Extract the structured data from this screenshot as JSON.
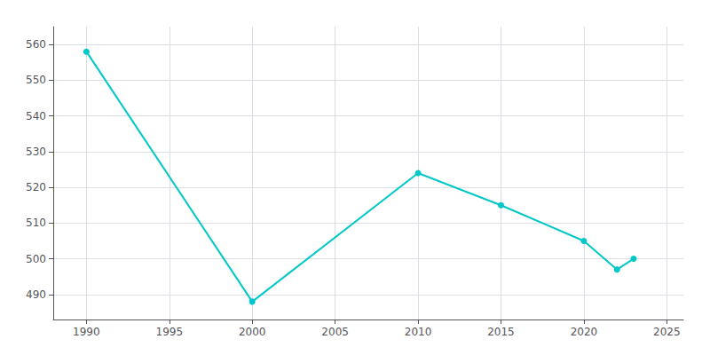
{
  "chart_data": {
    "type": "line",
    "x": [
      1990,
      2000,
      2010,
      2015,
      2020,
      2022,
      2023
    ],
    "values": [
      558,
      488,
      524,
      515,
      505,
      497,
      500
    ],
    "color": "#00C8C8",
    "marker": "circle",
    "xlim": [
      1988,
      2026
    ],
    "ylim": [
      483,
      565
    ],
    "xticks": [
      1990,
      1995,
      2000,
      2005,
      2010,
      2015,
      2020,
      2025
    ],
    "yticks": [
      490,
      500,
      510,
      520,
      530,
      540,
      550,
      560
    ],
    "grid": true
  }
}
